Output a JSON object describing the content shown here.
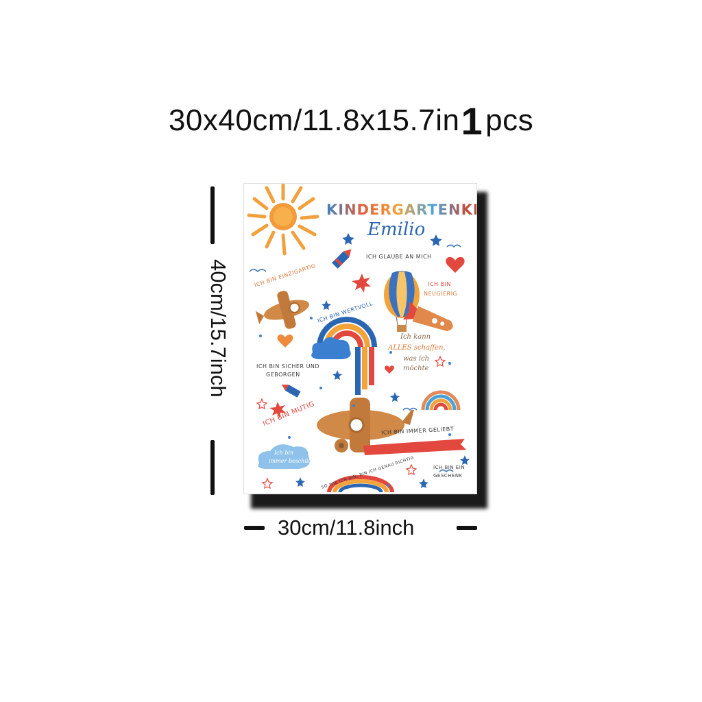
{
  "header": {
    "size_text": "30x40cm/11.8x15.7in",
    "quantity_number": "1",
    "quantity_unit": "pcs"
  },
  "dimensions": {
    "height_label": "40cm/15.7inch",
    "width_label": "30cm/11.8inch"
  },
  "poster": {
    "heading": "KINDERGARTENKIND",
    "name": "Emilio",
    "phrases": {
      "glaube": "ICH GLAUBE AN MICH",
      "einzigartig": "ICH BIN EINZIGARTIG",
      "neugierig_1": "ICH BIN",
      "neugierig_2": "NEUGIERIG",
      "wertvoll": "ICH BIN WERTVOLL",
      "schaffen_1": "Ich kann",
      "schaffen_2": "ALLES schaffen,",
      "schaffen_3": "was ich",
      "schaffen_4": "möchte",
      "sicher_1": "ICH BIN SICHER UND",
      "sicher_2": "GEBORGEN",
      "mutig": "ICH BIN MUTIG",
      "geliebt": "ICH BIN IMMER GELIEBT",
      "beschuetzt_1": "Ich bin",
      "beschuetzt_2": "immer beschützt",
      "richtig": "SO WIE ICH BIN, BIN ICH GENAU RICHTIG",
      "geschenk_1": "ICH BIN EIN",
      "geschenk_2": "GESCHENK"
    }
  },
  "colors": {
    "heading_palette": [
      "#3b82c4",
      "#e35d3a",
      "#f2a33a",
      "#4aa3d8",
      "#c8472f"
    ],
    "sun": "#f0a040",
    "accent_red": "#d9453a",
    "accent_blue": "#2b66b3",
    "wood": "#c9894a"
  }
}
